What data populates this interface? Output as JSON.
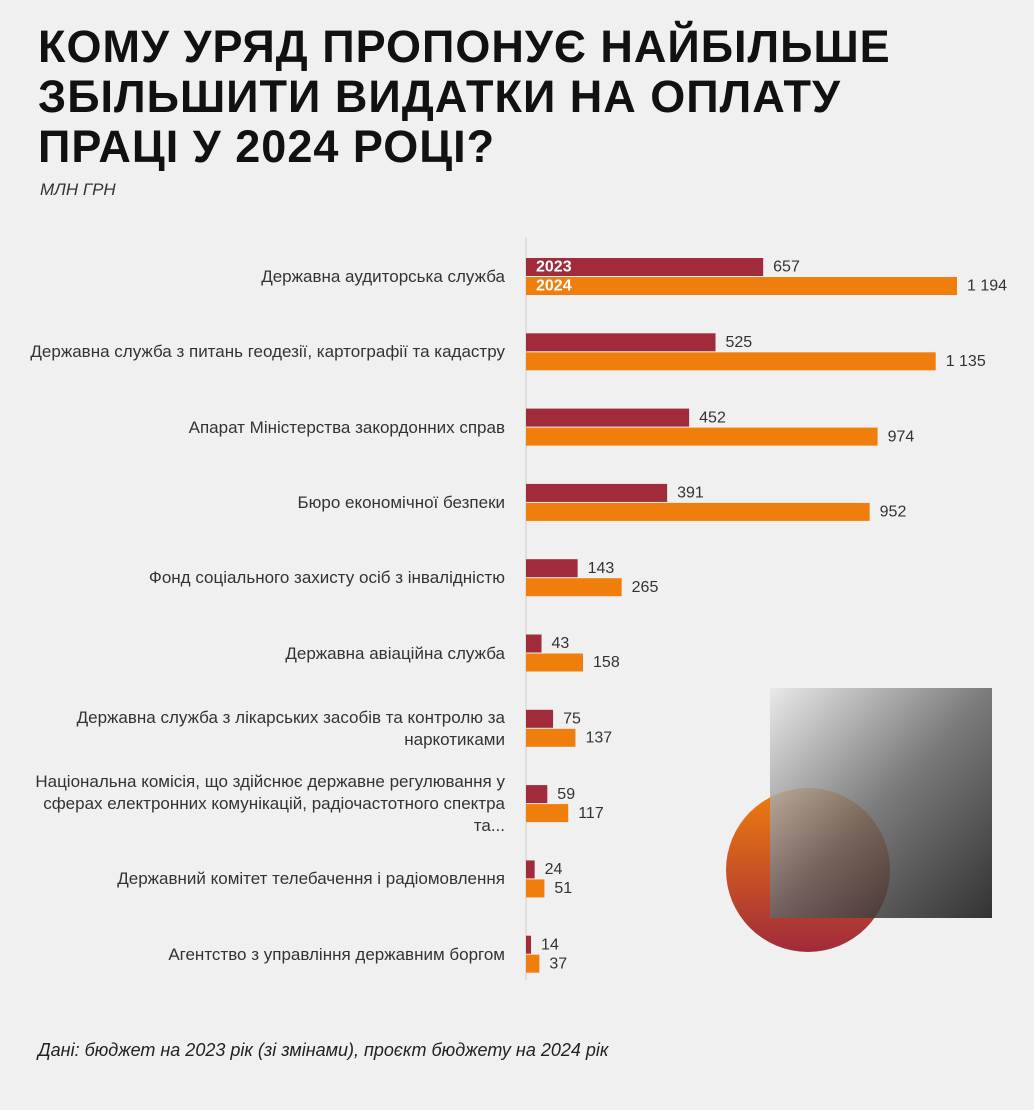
{
  "chart_data": {
    "type": "bar",
    "orientation": "horizontal",
    "title": "КОМУ УРЯД ПРОПОНУЄ НАЙБІЛЬШЕ ЗБІЛЬШИТИ ВИДАТКИ НА ОПЛАТУ ПРАЦІ У 2024 РОЦІ?",
    "subtitle": "МЛН ГРН",
    "source": "Дані: бюджет на 2023 рік (зі змінами), проєкт бюджету на 2024 рік",
    "categories": [
      "Державна аудиторська служба",
      "Державна служба з питань геодезії, картографії та кадастру",
      "Апарат Міністерства закордонних справ",
      "Бюро економічної безпеки",
      "Фонд соціального захисту осіб з інвалідністю",
      "Державна авіаційна служба",
      "Державна служба з лікарських засобів та контролю за наркотиками",
      "Національна комісія, що здійснює державне регулювання у сферах електронних комунікацій, радіочастотного спектра та...",
      "Державний комітет телебачення і радіомовлення",
      "Агентство з управління державним боргом"
    ],
    "series": [
      {
        "name": "2023",
        "color": "#a12a3b",
        "values": [
          657,
          525,
          452,
          391,
          143,
          43,
          75,
          59,
          24,
          14
        ]
      },
      {
        "name": "2024",
        "color": "#f07e0c",
        "values": [
          1194,
          1135,
          974,
          952,
          265,
          158,
          137,
          117,
          51,
          37
        ],
        "value_labels": [
          "1 194",
          "1 135",
          "974",
          "952",
          "265",
          "158",
          "137",
          "117",
          "51",
          "37"
        ]
      }
    ]
  }
}
